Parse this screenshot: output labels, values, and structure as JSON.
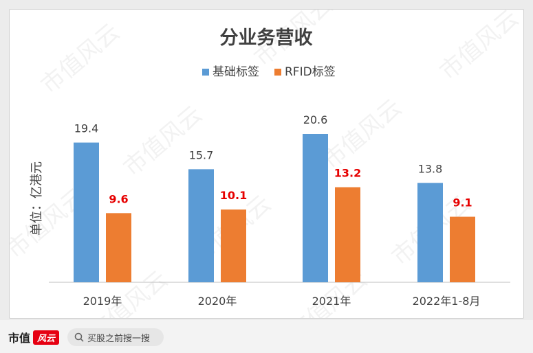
{
  "chart_data": {
    "type": "bar",
    "title": "分业务营收",
    "ylabel": "单位：亿港元",
    "xlabel": "",
    "categories": [
      "2019年",
      "2020年",
      "2021年",
      "2022年1-8月"
    ],
    "series": [
      {
        "name": "基础标签",
        "values": [
          19.4,
          15.7,
          20.6,
          13.8
        ],
        "color": "#5b9bd5",
        "label_color": "#404040",
        "label_bold": false
      },
      {
        "name": "RFID标签",
        "values": [
          9.6,
          10.1,
          13.2,
          9.1
        ],
        "color": "#ed7d31",
        "label_color": "#e60000",
        "label_bold": true
      }
    ],
    "ylim": [
      0,
      20.6
    ],
    "legend_position": "top-center",
    "grid": false
  },
  "watermark": "市值风云",
  "footer": {
    "brand": "市值",
    "brand_logo_text": "风云",
    "search_text": "买股之前搜一搜"
  }
}
